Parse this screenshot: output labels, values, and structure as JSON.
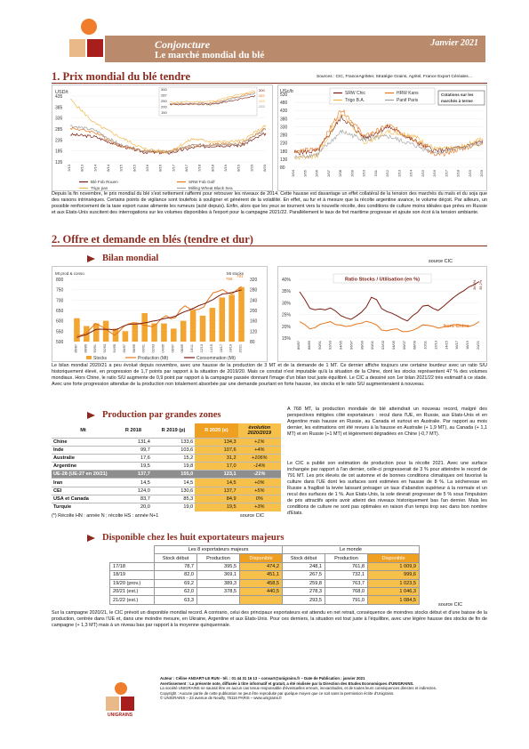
{
  "header": {
    "section": "Conjoncture",
    "title": "Le marché mondial du blé",
    "date": "Janvier 2021"
  },
  "section1": {
    "title": "1. Prix mondial du blé tendre",
    "sources": "Sources : CIC, FranceAgriMer, Stratégie Grains, Agritel, France Export Céréales…",
    "paragraph": "Depuis la fin novembre, le prix mondial du blé s'est nettement raffermi pour retrouver les niveaux de 2014. Cette hausse est davantage un effet collatéral de la tension des marchés du maïs et du soja que des raisons intrinsèques. Certains points de vigilance sont toutefois à souligner et générent de la volatilité. En effet, au fur et à mesure que la récolte argentine avance, le volume déçoit. Par ailleurs, un possible renforcement de la taxe export russe alimente les rumeurs (acté depuis). Enfin, alors que les yeux se tournent vers la nouvelle récolte, des conditions de culture moins idéales que prévu en Russie et aux Etats-Unis suscitent des interrogations sur les volumes disponibles à l'export pour la campagne 2021/22. Parallèlement le taux de fret maritime progresse et ajoute son écot à la tension ambiante."
  },
  "section2": {
    "title": "2. Offre et demande en blés (tendre et dur)",
    "bilan_title": "Bilan mondial",
    "bilan_source": "source CIC",
    "bilan_paragraph": "Le bilan mondial 2020/21 a peu évolué depuis novembre, avec une hausse de la production de 3 MT et de la demande de 1 MT. Ce dernier affiche toujours une certaine lourdeur avec un ratio S/U historiquement élevé, en progression de 1,7 points par rapport à la situation de 2019/20. Mais ce constat n'est imputable qu'à la situation de la Chine, dont les stocks représentent 47 % des volumes mondiaux. Hors Chine, le ratio S/U augmente de 0,9 point par rapport à la campagne passée donnant l'image d'un bilan tout juste équilibré. Le CIC a dessiné son 1er bilan 2021/22 très estimatif à ce stade. Avec une forte progression attendue de la production non totalement absorbée par une demande pourtant en forte hausse, les stocks et le ratio S/U augmenteraient à nouveau.",
    "production_title": "Production par grandes zones",
    "production_note": "(*) Récolte HN : année N ; récolte HS : année N+1",
    "production_source": "source CIC",
    "production_paragraph": "A 768 MT, la production mondiale de blé atteindrait un nouveau record, malgré des perspectives mitigées côté exportateurs : recul dans l'UE, en Russie, aux Etats-Unis et en Argentine mais hausse en Russie, au Canada et surtout en Australie. Par rapport au mois dernier, les estimations ont été revues à la hausse en Australie (+ 1,9 MT), au Canada (+ 1,1 MT) et en Russie (+1 MT) et légèrement dégradées en Chine (-0,7 MT).",
    "forecast_paragraph": "Le CIC a publié son estimation de production pour la récolte 2021. Avec une surface inchangée par rapport à l'an dernier, celle-ci progresserait de 3 % pour atteindre le record de 791 MT. Les prix élevés de cet automne et de bonnes conditions climatiques ont favorisé la culture dans l'UE dont les surfaces sont estimées en hausse de 8 %. La sécheresse en Russie a fragilisé la levée laissant présager un taux d'abandon supérieur à la normale et un recul des surfaces de 1 %. Aux Etats-Unis, la sole devrait progresser de 5 % sous l'impulsion de prix attractifs après avoir atteint des niveaux historiquement bas l'an dernier. Mais les conditions de culture ne sont pas optimales en raison d'un temps trop sec dans bon nombre d'Etats.",
    "dispo_title": "Disponible chez les huit exportateurs majeurs",
    "dispo_paragraph": "Sur la campagne 2020/21, le CIC prévoit un disponible mondial record. A contrario, celui des principaux exportateurs est attendu en net retrait, conséquence de moindres stocks début et d'une baisse de la production, centrée dans l'UE et, dans une moindre mesure, en Ukraine, Argentine et aux Etats-Unis. Pour ces derniers, la situation est tout juste à l'équilibre, avec une légère hausse des stocks de fin de campagne (+ 1,3 MT) mais à un niveau bas par rapport à la moyenne quinquennale."
  },
  "chart_wheat_prices": {
    "ylabel": "USD/t",
    "y_ticks": [
      "435",
      "385",
      "335",
      "285",
      "235",
      "185",
      "135"
    ],
    "x_ticks": [
      "2/13",
      "8/13",
      "2/14",
      "8/14",
      "2/15",
      "8/15",
      "2/16",
      "8/16",
      "2/17",
      "8/17",
      "2/18",
      "8/18",
      "2/19",
      "8/19",
      "2/20",
      "8/20"
    ],
    "legend": [
      "Blé Fob Rouen",
      "SRW Fob Golf",
      "Trigo pan",
      "Milling Wheat Black Sea"
    ],
    "colors": [
      "#7a1c10",
      "#e8751a",
      "#f2b84c",
      "#9e9e9e"
    ],
    "inset_ticks": [
      "300",
      "287",
      "250",
      "200",
      "150"
    ],
    "end_labels": [
      "300",
      "287",
      "283",
      "265"
    ],
    "chart_data": {
      "type": "line",
      "ylim": [
        135,
        435
      ],
      "x": [
        "2013",
        "2014",
        "2015",
        "2016",
        "2017",
        "2018",
        "2019",
        "2020",
        "2021"
      ],
      "series": [
        {
          "name": "Blé Fob Rouen",
          "values": [
            260,
            250,
            210,
            180,
            175,
            200,
            210,
            210,
            265
          ]
        },
        {
          "name": "SRW Fob Golf",
          "values": [
            290,
            270,
            210,
            185,
            180,
            210,
            215,
            220,
            287
          ]
        },
        {
          "name": "Trigo pan",
          "values": [
            420,
            310,
            250,
            195,
            180,
            240,
            225,
            230,
            300
          ]
        },
        {
          "name": "Milling Wheat Black Sea",
          "values": [
            300,
            280,
            215,
            185,
            180,
            210,
            215,
            215,
            283
          ]
        }
      ]
    }
  },
  "chart_futures": {
    "ylabel": "USc/b",
    "y_ticks": [
      "530",
      "480",
      "430",
      "380",
      "330",
      "280",
      "230",
      "180",
      "130",
      "80"
    ],
    "x_ticks": [
      "2/04",
      "2/05",
      "2/06",
      "2/07",
      "2/08",
      "2/09",
      "2/10",
      "2/11",
      "2/12",
      "2/13",
      "2/14",
      "2/15",
      "2/16",
      "2/17",
      "2/18",
      "2/19",
      "2/20"
    ],
    "legend": [
      "SRW Chic",
      "HRW Kans",
      "Trigo B.A.",
      "Panif Paris"
    ],
    "colors": [
      "#7a1c10",
      "#e8751a",
      "#f2b84c",
      "#9e9e9e"
    ],
    "note": "Cotations sur les marchés à terme",
    "chart_data": {
      "type": "line",
      "ylim": [
        80,
        530
      ],
      "x": [
        "2004",
        "2006",
        "2008",
        "2010",
        "2012",
        "2014",
        "2016",
        "2018",
        "2020"
      ],
      "series": [
        {
          "name": "SRW Chic",
          "values": [
            170,
            180,
            390,
            260,
            330,
            250,
            180,
            200,
            240
          ]
        },
        {
          "name": "HRW Kans",
          "values": [
            180,
            190,
            440,
            270,
            340,
            260,
            150,
            190,
            230
          ]
        },
        {
          "name": "Trigo B.A.",
          "values": [
            140,
            150,
            420,
            230,
            300,
            280,
            190,
            200,
            260
          ]
        },
        {
          "name": "Panif Paris",
          "values": [
            140,
            160,
            300,
            250,
            270,
            220,
            170,
            195,
            230
          ]
        }
      ]
    }
  },
  "chart_bilan": {
    "left_label": "Mt prod & conso",
    "right_label": "Mt stocks",
    "left_ticks": [
      "800",
      "750",
      "700",
      "650",
      "600",
      "550",
      "500"
    ],
    "right_ticks": [
      "320",
      "280",
      "240",
      "200",
      "160",
      "120",
      "80"
    ],
    "legend": [
      "Stocks",
      "Production (Mt)",
      "Consommation (Mt)"
    ],
    "colors": {
      "stocks": "#f2a531",
      "production": "#e8751a",
      "consommation": "#7a1c10"
    },
    "end_labels": [
      "768",
      "791"
    ],
    "chart_data": {
      "type": "bar",
      "categories": [
        "86/87",
        "88/89",
        "90/91",
        "92/93",
        "94/95",
        "96/97",
        "98/99",
        "00/01",
        "02/03",
        "04/05",
        "06/07",
        "08/09",
        "10/11",
        "12/13",
        "14/15",
        "16/17",
        "18/19",
        "20/21"
      ],
      "series": [
        {
          "name": "Stocks",
          "values": [
            170,
            140,
            150,
            160,
            130,
            120,
            150,
            190,
            150,
            150,
            130,
            160,
            200,
            180,
            210,
            250,
            260,
            290
          ]
        },
        {
          "name": "Production (Mt)",
          "values": [
            530,
            540,
            590,
            560,
            530,
            580,
            590,
            580,
            570,
            630,
            600,
            680,
            650,
            660,
            730,
            750,
            730,
            768
          ]
        },
        {
          "name": "Consommation (Mt)",
          "values": [
            520,
            535,
            560,
            560,
            555,
            580,
            585,
            590,
            600,
            610,
            620,
            640,
            660,
            680,
            700,
            730,
            735,
            750
          ]
        }
      ],
      "ylim": [
        500,
        800
      ]
    }
  },
  "chart_ratio": {
    "title": "Ratio Stocks / Utilisation (en %)",
    "y_ticks": [
      "40%",
      "35%",
      "30%",
      "25%",
      "20%",
      "15%"
    ],
    "x_ticks": [
      "86/87",
      "88/89",
      "90/91",
      "92/93",
      "94/95",
      "96/97",
      "98/99",
      "00/01",
      "02/03",
      "04/05",
      "06/07",
      "08/09",
      "10/11",
      "12/13",
      "14/15",
      "16/17",
      "18/19",
      "20/21"
    ],
    "hors_chine_label": "hors Chine",
    "end_labels": [
      "38,8%",
      "38,2%"
    ],
    "colors": {
      "total": "#7a1c10",
      "hors_chine": "#e8751a"
    },
    "chart_data": {
      "type": "line",
      "ylim": [
        15,
        40
      ],
      "x": [
        "86/87",
        "88/89",
        "90/91",
        "92/93",
        "94/95",
        "96/97",
        "98/99",
        "00/01",
        "02/03",
        "04/05",
        "06/07",
        "08/09",
        "10/11",
        "12/13",
        "14/15",
        "16/17",
        "18/19",
        "20/21"
      ],
      "series": [
        {
          "name": "total",
          "values": [
            35,
            28,
            27,
            28,
            24,
            23,
            26,
            33,
            26,
            25,
            22,
            26,
            30,
            27,
            30,
            34,
            36,
            38.8
          ]
        },
        {
          "name": "hors Chine",
          "values": [
            22,
            19,
            21,
            22,
            20,
            20,
            22,
            21,
            18,
            19,
            17,
            19,
            21,
            19,
            20,
            21,
            20,
            22
          ]
        }
      ]
    }
  },
  "production_table": {
    "headers": [
      "Mt",
      "R 2018",
      "R 2019 (p)",
      "R 2020 (e)",
      "évolution 2020/2019"
    ],
    "rows": [
      {
        "name": "Chine",
        "r2018": "131,4",
        "r2019": "133,6",
        "r2020": "134,3",
        "evol": "+1%",
        "highlight": false
      },
      {
        "name": "Inde",
        "r2018": "99,7",
        "r2019": "103,6",
        "r2020": "107,6",
        "evol": "+4%",
        "highlight": false
      },
      {
        "name": "Australie",
        "r2018": "17,6",
        "r2019": "15,2",
        "r2020": "31,2",
        "evol": "+106%",
        "highlight": false
      },
      {
        "name": "Argentine",
        "r2018": "19,5",
        "r2019": "19,8",
        "r2020": "17,0",
        "evol": "-14%",
        "highlight": false
      },
      {
        "name": "UE-28 (UE-27 en 20/21)",
        "r2018": "137,7",
        "r2019": "155,0",
        "r2020": "123,1",
        "evol": "-21%",
        "highlight": true
      },
      {
        "name": "Iran",
        "r2018": "14,5",
        "r2019": "14,5",
        "r2020": "14,5",
        "evol": "+0%",
        "highlight": false
      },
      {
        "name": "CEI",
        "r2018": "124,0",
        "r2019": "130,6",
        "r2020": "137,7",
        "evol": "+5%",
        "highlight": false
      },
      {
        "name": "USA et Canada",
        "r2018": "83,7",
        "r2019": "85,3",
        "r2020": "84,9",
        "evol": "0%",
        "highlight": false
      },
      {
        "name": "Turquie",
        "r2018": "20,0",
        "r2019": "19,0",
        "r2020": "19,5",
        "evol": "+3%",
        "highlight": false
      }
    ]
  },
  "dispo_table": {
    "group_headers": [
      "Les 8 exportateurs majeurs",
      "Le monde"
    ],
    "headers": [
      "Stock début",
      "Production",
      "Disponible",
      "Stock début",
      "Production",
      "Disponible"
    ],
    "rows": [
      {
        "year": "17/18",
        "values": [
          "78,7",
          "395,5",
          "474,2",
          "248,1",
          "761,8",
          "1 009,9"
        ]
      },
      {
        "year": "18/19",
        "values": [
          "82,0",
          "369,1",
          "451,1",
          "267,5",
          "732,1",
          "999,6"
        ]
      },
      {
        "year": "19/20 (prov.)",
        "values": [
          "69,2",
          "389,3",
          "458,5",
          "259,8",
          "763,7",
          "1 023,5"
        ]
      },
      {
        "year": "20/21 (est.)",
        "values": [
          "62,0",
          "378,5",
          "440,5",
          "278,3",
          "768,0",
          "1 046,3"
        ]
      },
      {
        "year": "21/22 (est.)",
        "values": [
          "63,3",
          "",
          "",
          "293,5",
          "791,0",
          "1 084,5"
        ]
      }
    ],
    "source": "source CIC"
  },
  "footer": {
    "logo_text": "UNIGRAINS",
    "line1": "Auteur : Céline ANSART-LE RUN - tél. : 01 44 31 16 13 – consart@unigrains.fr – Date de Publication : janvier 2021",
    "line2": "Avertissement : La présente note, diffusée à titre informatif et gratuit, a été réalisée par la Direction des Etudes Economiques d'UNIGRAINS.",
    "line3": "La société UNIGRAINS ne saurait être en aucun cas tenue responsable d'éventuelles erreurs, inexactitudes, et de toutes leurs conséquences directes et indirectes.",
    "line4": "Copyright : Aucune partie de cette publication ne peut être reproduite par quelque moyen que ce soit sans la permission écrite d'Unigrains.",
    "line5": "© UNIGRAINS – 23 avenue de Neuilly, 75116 PARIS – www.unigrains.fr"
  }
}
